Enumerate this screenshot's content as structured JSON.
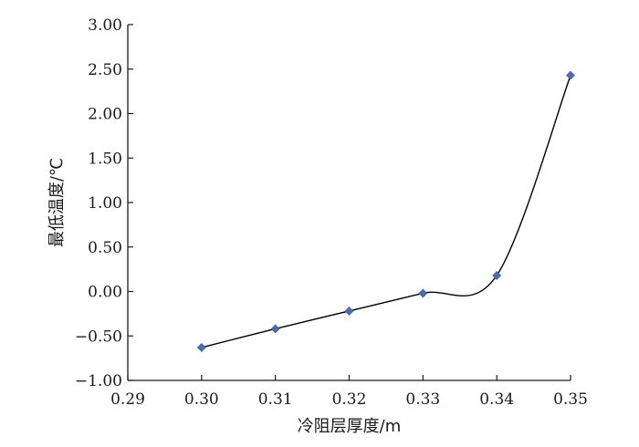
{
  "chart_data": {
    "type": "scatter",
    "title": "",
    "xlabel": "冷阻层厚度/m",
    "ylabel": "最低温度/℃",
    "xlim": [
      0.29,
      0.35
    ],
    "ylim": [
      -1.0,
      3.0
    ],
    "x_ticks": [
      "0.29",
      "0.30",
      "0.31",
      "0.32",
      "0.33",
      "0.34",
      "0.35"
    ],
    "y_ticks": [
      "3.00",
      "2.50",
      "2.00",
      "1.50",
      "1.00",
      "0.50",
      "0.00",
      "−0.50",
      "−1.00"
    ],
    "grid": false,
    "smoothed_line": true,
    "marker": "diamond",
    "marker_color": "#4a6cb3",
    "line_color": "#000000",
    "series": [
      {
        "x": [
          0.3,
          0.31,
          0.32,
          0.33,
          0.34,
          0.35
        ],
        "y": [
          -0.63,
          -0.42,
          -0.22,
          -0.02,
          0.18,
          2.43
        ]
      }
    ]
  }
}
